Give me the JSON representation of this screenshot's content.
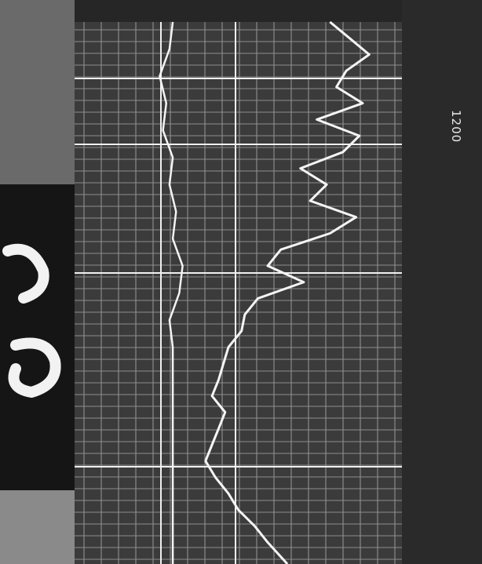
{
  "image": {
    "description_colors": {
      "background": "#2b2b2b",
      "grid_panel": "#3a3a3a",
      "grid_line": "#cfcfcf",
      "trace": "#f4f4f4"
    }
  },
  "annotations": {
    "depth_label": "1200"
  },
  "chart_data": {
    "type": "line",
    "title": "",
    "xlabel": "",
    "ylabel": "",
    "depth_axis": "vertical",
    "grid": true,
    "series": [
      {
        "name": "",
        "points": [
          [
            0.0,
            0.78
          ],
          [
            0.03,
            0.84
          ],
          [
            0.06,
            0.9
          ],
          [
            0.09,
            0.83
          ],
          [
            0.12,
            0.8
          ],
          [
            0.15,
            0.88
          ],
          [
            0.18,
            0.74
          ],
          [
            0.21,
            0.87
          ],
          [
            0.24,
            0.82
          ],
          [
            0.27,
            0.69
          ],
          [
            0.3,
            0.77
          ],
          [
            0.33,
            0.72
          ],
          [
            0.36,
            0.86
          ],
          [
            0.39,
            0.78
          ],
          [
            0.42,
            0.63
          ],
          [
            0.45,
            0.59
          ],
          [
            0.48,
            0.7
          ],
          [
            0.51,
            0.56
          ],
          [
            0.54,
            0.52
          ],
          [
            0.57,
            0.51
          ],
          [
            0.6,
            0.47
          ],
          [
            0.63,
            0.455
          ],
          [
            0.66,
            0.44
          ],
          [
            0.69,
            0.42
          ],
          [
            0.72,
            0.46
          ],
          [
            0.75,
            0.44
          ],
          [
            0.78,
            0.42
          ],
          [
            0.81,
            0.4
          ],
          [
            0.84,
            0.43
          ],
          [
            0.87,
            0.47
          ],
          [
            0.9,
            0.5
          ],
          [
            0.93,
            0.55
          ],
          [
            0.96,
            0.59
          ],
          [
            1.0,
            0.65
          ]
        ]
      },
      {
        "name": "",
        "points": [
          [
            0.0,
            0.3
          ],
          [
            0.05,
            0.29
          ],
          [
            0.1,
            0.26
          ],
          [
            0.15,
            0.28
          ],
          [
            0.2,
            0.27
          ],
          [
            0.25,
            0.3
          ],
          [
            0.3,
            0.29
          ],
          [
            0.35,
            0.31
          ],
          [
            0.4,
            0.3
          ],
          [
            0.45,
            0.33
          ],
          [
            0.5,
            0.32
          ],
          [
            0.55,
            0.29
          ],
          [
            0.6,
            0.3
          ],
          [
            0.65,
            0.3
          ],
          [
            0.7,
            0.3
          ],
          [
            0.75,
            0.3
          ],
          [
            0.8,
            0.3
          ],
          [
            0.85,
            0.3
          ],
          [
            0.9,
            0.3
          ],
          [
            0.95,
            0.3
          ],
          [
            1.0,
            0.3
          ]
        ]
      }
    ]
  }
}
